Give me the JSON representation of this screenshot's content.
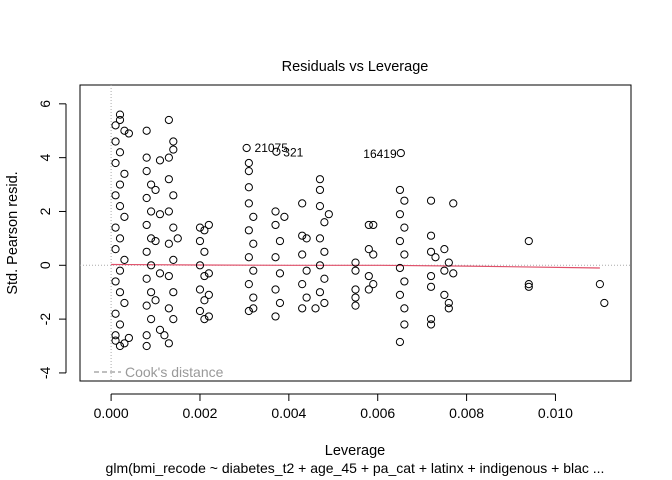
{
  "chart_data": {
    "type": "scatter",
    "title": "Residuals vs Leverage",
    "xlabel": "Leverage",
    "ylabel": "Std. Pearson resid.",
    "subtitle": "glm(bmi_recode ~ diabetes_t2 + age_45 + pa_cat + latinx + indigenous + blac ...",
    "xlim": [
      -0.0007,
      0.0117
    ],
    "ylim": [
      -4.3,
      6.7
    ],
    "x_ticks": [
      0.0,
      0.002,
      0.004,
      0.006,
      0.008,
      0.01
    ],
    "x_tick_labels": [
      "0.000",
      "0.002",
      "0.004",
      "0.006",
      "0.008",
      "0.010"
    ],
    "y_ticks": [
      -4,
      -2,
      0,
      2,
      4,
      6
    ],
    "y_tick_labels": [
      "-4",
      "-2",
      "0",
      "2",
      "4",
      "6"
    ],
    "grid": false,
    "legend": {
      "label": "Cook's distance",
      "position": "bottom-left",
      "line_style": "dashed",
      "color": "#999999"
    },
    "smooth_color": "#e0506a",
    "reference_line_color": "#aaaaaa",
    "annotations": [
      {
        "label": "21075",
        "x": 0.00307,
        "y": 4.36
      },
      {
        "label": "321",
        "x": 0.00374,
        "y": 4.22
      },
      {
        "label": "16419",
        "x": 0.00653,
        "y": 4.17
      }
    ],
    "series": [
      {
        "x": 0.0002,
        "y": 5.6
      },
      {
        "x": 0.0002,
        "y": 5.4
      },
      {
        "x": 0.0001,
        "y": 5.2
      },
      {
        "x": 0.0003,
        "y": 5.0
      },
      {
        "x": 0.0001,
        "y": 4.6
      },
      {
        "x": 0.0002,
        "y": 4.2
      },
      {
        "x": 0.0001,
        "y": 3.8
      },
      {
        "x": 0.0003,
        "y": 3.4
      },
      {
        "x": 0.0002,
        "y": 3.0
      },
      {
        "x": 0.0001,
        "y": 2.6
      },
      {
        "x": 0.0002,
        "y": 2.2
      },
      {
        "x": 0.0003,
        "y": 1.8
      },
      {
        "x": 0.0001,
        "y": 1.4
      },
      {
        "x": 0.0002,
        "y": 1.0
      },
      {
        "x": 0.0001,
        "y": 0.6
      },
      {
        "x": 0.0003,
        "y": 0.2
      },
      {
        "x": 0.0002,
        "y": -0.2
      },
      {
        "x": 0.0001,
        "y": -0.6
      },
      {
        "x": 0.0002,
        "y": -1.0
      },
      {
        "x": 0.0003,
        "y": -1.4
      },
      {
        "x": 0.0001,
        "y": -1.8
      },
      {
        "x": 0.0002,
        "y": -2.2
      },
      {
        "x": 0.0001,
        "y": -2.6
      },
      {
        "x": 0.0003,
        "y": -2.9
      },
      {
        "x": 0.0002,
        "y": -3.0
      },
      {
        "x": 0.0001,
        "y": -2.8
      },
      {
        "x": 0.0004,
        "y": -2.7
      },
      {
        "x": 0.0004,
        "y": 4.9
      },
      {
        "x": 0.0008,
        "y": 5.0
      },
      {
        "x": 0.0008,
        "y": 4.0
      },
      {
        "x": 0.0008,
        "y": 3.5
      },
      {
        "x": 0.0009,
        "y": 3.0
      },
      {
        "x": 0.0008,
        "y": 2.5
      },
      {
        "x": 0.0009,
        "y": 2.0
      },
      {
        "x": 0.0008,
        "y": 1.5
      },
      {
        "x": 0.0009,
        "y": 1.0
      },
      {
        "x": 0.0008,
        "y": 0.5
      },
      {
        "x": 0.0009,
        "y": 0.0
      },
      {
        "x": 0.0008,
        "y": -0.5
      },
      {
        "x": 0.0009,
        "y": -1.0
      },
      {
        "x": 0.0008,
        "y": -1.5
      },
      {
        "x": 0.0009,
        "y": -2.0
      },
      {
        "x": 0.0008,
        "y": -2.6
      },
      {
        "x": 0.0008,
        "y": -3.0
      },
      {
        "x": 0.0011,
        "y": 3.9
      },
      {
        "x": 0.001,
        "y": 2.8
      },
      {
        "x": 0.0011,
        "y": 1.9
      },
      {
        "x": 0.001,
        "y": 0.9
      },
      {
        "x": 0.0011,
        "y": -0.3
      },
      {
        "x": 0.001,
        "y": -1.3
      },
      {
        "x": 0.0011,
        "y": -2.4
      },
      {
        "x": 0.0012,
        "y": -2.6
      },
      {
        "x": 0.0013,
        "y": 5.4
      },
      {
        "x": 0.0014,
        "y": 4.6
      },
      {
        "x": 0.0014,
        "y": 4.3
      },
      {
        "x": 0.0013,
        "y": 4.0
      },
      {
        "x": 0.0013,
        "y": 3.2
      },
      {
        "x": 0.0014,
        "y": 2.6
      },
      {
        "x": 0.0013,
        "y": 2.0
      },
      {
        "x": 0.0014,
        "y": 1.4
      },
      {
        "x": 0.0013,
        "y": 0.8
      },
      {
        "x": 0.0014,
        "y": 0.2
      },
      {
        "x": 0.0013,
        "y": -0.4
      },
      {
        "x": 0.0014,
        "y": -1.0
      },
      {
        "x": 0.0013,
        "y": -1.6
      },
      {
        "x": 0.0014,
        "y": -2.0
      },
      {
        "x": 0.0013,
        "y": -2.9
      },
      {
        "x": 0.0015,
        "y": 1.0
      },
      {
        "x": 0.002,
        "y": 1.4
      },
      {
        "x": 0.0021,
        "y": 1.3
      },
      {
        "x": 0.002,
        "y": 0.9
      },
      {
        "x": 0.0021,
        "y": 0.5
      },
      {
        "x": 0.002,
        "y": 0.0
      },
      {
        "x": 0.0021,
        "y": -0.4
      },
      {
        "x": 0.002,
        "y": -0.9
      },
      {
        "x": 0.0021,
        "y": -1.3
      },
      {
        "x": 0.002,
        "y": -1.7
      },
      {
        "x": 0.0021,
        "y": -2.0
      },
      {
        "x": 0.0022,
        "y": 1.5
      },
      {
        "x": 0.0022,
        "y": -0.3
      },
      {
        "x": 0.0022,
        "y": -1.1
      },
      {
        "x": 0.0022,
        "y": -1.9
      },
      {
        "x": 0.00305,
        "y": 4.36
      },
      {
        "x": 0.0031,
        "y": 3.8
      },
      {
        "x": 0.0031,
        "y": 3.5
      },
      {
        "x": 0.0031,
        "y": 2.9
      },
      {
        "x": 0.0031,
        "y": 2.3
      },
      {
        "x": 0.0032,
        "y": 1.8
      },
      {
        "x": 0.0031,
        "y": 1.3
      },
      {
        "x": 0.0032,
        "y": 0.8
      },
      {
        "x": 0.0031,
        "y": 0.3
      },
      {
        "x": 0.0032,
        "y": -0.2
      },
      {
        "x": 0.0031,
        "y": -0.7
      },
      {
        "x": 0.0032,
        "y": -1.2
      },
      {
        "x": 0.0031,
        "y": -1.7
      },
      {
        "x": 0.0032,
        "y": -1.6
      },
      {
        "x": 0.00372,
        "y": 4.22
      },
      {
        "x": 0.0037,
        "y": 2.0
      },
      {
        "x": 0.0037,
        "y": 1.5
      },
      {
        "x": 0.0038,
        "y": 0.9
      },
      {
        "x": 0.0037,
        "y": 0.3
      },
      {
        "x": 0.0038,
        "y": -0.3
      },
      {
        "x": 0.0037,
        "y": -0.9
      },
      {
        "x": 0.0038,
        "y": -1.4
      },
      {
        "x": 0.0037,
        "y": -1.9
      },
      {
        "x": 0.0039,
        "y": 1.8
      },
      {
        "x": 0.0043,
        "y": 2.3
      },
      {
        "x": 0.0043,
        "y": 1.1
      },
      {
        "x": 0.0044,
        "y": 1.0
      },
      {
        "x": 0.0043,
        "y": 0.4
      },
      {
        "x": 0.0044,
        "y": -0.2
      },
      {
        "x": 0.0043,
        "y": -0.7
      },
      {
        "x": 0.0044,
        "y": -1.2
      },
      {
        "x": 0.0043,
        "y": -1.6
      },
      {
        "x": 0.0047,
        "y": 3.2
      },
      {
        "x": 0.0047,
        "y": 2.8
      },
      {
        "x": 0.0047,
        "y": 2.2
      },
      {
        "x": 0.0048,
        "y": 1.6
      },
      {
        "x": 0.0047,
        "y": 1.0
      },
      {
        "x": 0.0048,
        "y": 0.5
      },
      {
        "x": 0.0047,
        "y": 0.0
      },
      {
        "x": 0.0048,
        "y": -0.5
      },
      {
        "x": 0.0047,
        "y": -1.0
      },
      {
        "x": 0.0048,
        "y": -1.4
      },
      {
        "x": 0.0049,
        "y": 1.9
      },
      {
        "x": 0.0046,
        "y": -1.6
      },
      {
        "x": 0.0055,
        "y": 0.1
      },
      {
        "x": 0.0055,
        "y": -0.2
      },
      {
        "x": 0.0055,
        "y": -0.9
      },
      {
        "x": 0.0055,
        "y": -1.2
      },
      {
        "x": 0.0055,
        "y": -1.5
      },
      {
        "x": 0.0058,
        "y": 0.6
      },
      {
        "x": 0.0058,
        "y": 1.5
      },
      {
        "x": 0.0059,
        "y": 1.5
      },
      {
        "x": 0.0059,
        "y": 0.4
      },
      {
        "x": 0.0058,
        "y": -0.4
      },
      {
        "x": 0.0059,
        "y": -0.7
      },
      {
        "x": 0.0058,
        "y": -0.9
      },
      {
        "x": 0.00652,
        "y": 4.17
      },
      {
        "x": 0.0065,
        "y": 2.8
      },
      {
        "x": 0.0066,
        "y": 2.4
      },
      {
        "x": 0.0065,
        "y": 1.9
      },
      {
        "x": 0.0066,
        "y": 1.4
      },
      {
        "x": 0.0065,
        "y": 0.9
      },
      {
        "x": 0.0066,
        "y": 0.4
      },
      {
        "x": 0.0065,
        "y": -0.1
      },
      {
        "x": 0.0066,
        "y": -0.6
      },
      {
        "x": 0.0065,
        "y": -1.1
      },
      {
        "x": 0.0066,
        "y": -1.6
      },
      {
        "x": 0.0066,
        "y": -2.2
      },
      {
        "x": 0.0065,
        "y": -2.85
      },
      {
        "x": 0.0072,
        "y": 2.4
      },
      {
        "x": 0.0072,
        "y": 1.1
      },
      {
        "x": 0.0072,
        "y": 0.5
      },
      {
        "x": 0.0073,
        "y": 0.3
      },
      {
        "x": 0.0072,
        "y": -0.4
      },
      {
        "x": 0.0072,
        "y": -0.8
      },
      {
        "x": 0.0072,
        "y": -2.0
      },
      {
        "x": 0.0072,
        "y": -2.2
      },
      {
        "x": 0.0075,
        "y": 0.6
      },
      {
        "x": 0.0075,
        "y": -0.2
      },
      {
        "x": 0.0075,
        "y": -1.1
      },
      {
        "x": 0.0076,
        "y": 0.1
      },
      {
        "x": 0.0076,
        "y": -1.4
      },
      {
        "x": 0.0076,
        "y": -1.6
      },
      {
        "x": 0.0077,
        "y": 2.3
      },
      {
        "x": 0.0077,
        "y": -0.3
      },
      {
        "x": 0.0094,
        "y": 0.9
      },
      {
        "x": 0.0094,
        "y": -0.7
      },
      {
        "x": 0.0094,
        "y": -0.8
      },
      {
        "x": 0.011,
        "y": -0.7
      },
      {
        "x": 0.0111,
        "y": -1.4
      }
    ]
  }
}
